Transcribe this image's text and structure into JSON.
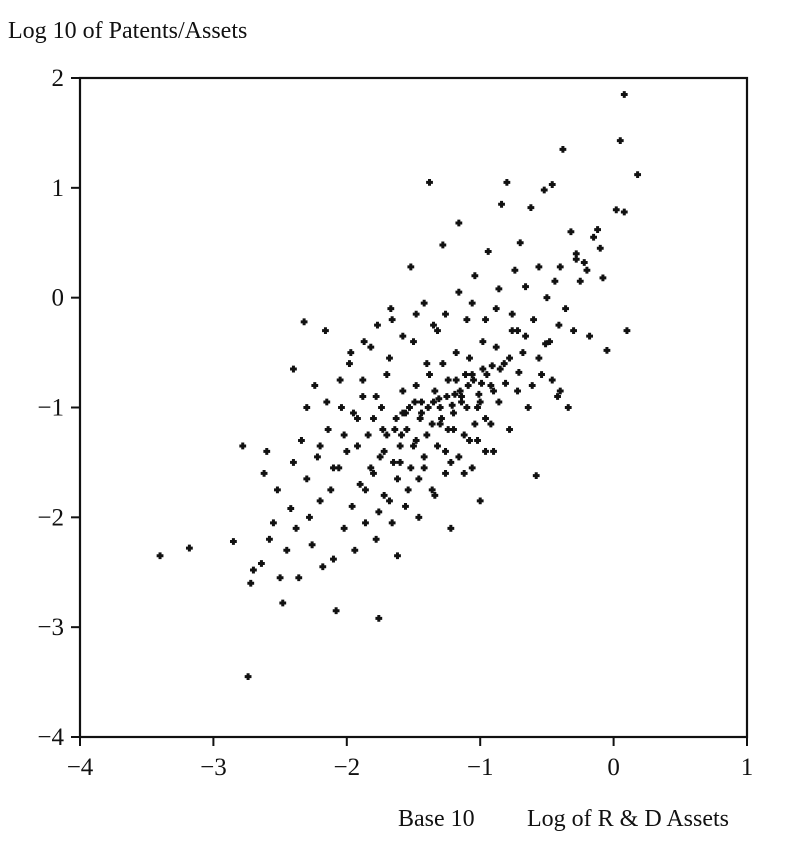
{
  "chart_data": {
    "type": "scatter",
    "title": "",
    "ylabel": "Log 10 of Patents/Assets",
    "xlabel_parts": [
      "Base 10",
      "Log of R & D Assets"
    ],
    "xlim": [
      -4,
      1
    ],
    "ylim": [
      -4,
      2
    ],
    "x_ticks": [
      -4,
      -3,
      -2,
      -1,
      0,
      1
    ],
    "x_tick_labels": [
      "−4",
      "−3",
      "−2",
      "−1",
      "0",
      "1"
    ],
    "y_ticks": [
      -4,
      -3,
      -2,
      -1,
      0,
      1,
      2
    ],
    "y_tick_labels": [
      "−4",
      "−3",
      "−2",
      "−1",
      "0",
      "1",
      "2"
    ],
    "grid": false,
    "legend": "none",
    "marker": "plus",
    "color": "#111111",
    "points": [
      [
        -3.4,
        -2.35
      ],
      [
        -3.18,
        -2.28
      ],
      [
        -2.74,
        -3.45
      ],
      [
        -2.85,
        -2.22
      ],
      [
        -2.78,
        -1.35
      ],
      [
        -2.72,
        -2.6
      ],
      [
        -2.7,
        -2.48
      ],
      [
        -2.64,
        -2.42
      ],
      [
        -2.62,
        -1.6
      ],
      [
        -2.6,
        -1.4
      ],
      [
        -2.58,
        -2.2
      ],
      [
        -2.55,
        -2.05
      ],
      [
        -2.52,
        -1.75
      ],
      [
        -2.5,
        -2.55
      ],
      [
        -2.48,
        -2.78
      ],
      [
        -2.45,
        -2.3
      ],
      [
        -2.42,
        -1.92
      ],
      [
        -2.4,
        -1.5
      ],
      [
        -2.38,
        -2.1
      ],
      [
        -2.36,
        -2.55
      ],
      [
        -2.34,
        -1.3
      ],
      [
        -2.32,
        -0.22
      ],
      [
        -2.3,
        -1.65
      ],
      [
        -2.28,
        -2.0
      ],
      [
        -2.26,
        -2.25
      ],
      [
        -2.24,
        -0.8
      ],
      [
        -2.22,
        -1.45
      ],
      [
        -2.2,
        -1.85
      ],
      [
        -2.18,
        -2.45
      ],
      [
        -2.16,
        -0.3
      ],
      [
        -2.14,
        -1.2
      ],
      [
        -2.12,
        -1.75
      ],
      [
        -2.1,
        -2.38
      ],
      [
        -2.08,
        -2.85
      ],
      [
        -2.06,
        -1.55
      ],
      [
        -2.04,
        -1.0
      ],
      [
        -2.02,
        -2.1
      ],
      [
        -2.0,
        -1.4
      ],
      [
        -1.98,
        -0.6
      ],
      [
        -1.96,
        -1.9
      ],
      [
        -1.94,
        -2.3
      ],
      [
        -1.92,
        -1.1
      ],
      [
        -1.9,
        -1.7
      ],
      [
        -1.88,
        -0.9
      ],
      [
        -1.86,
        -2.05
      ],
      [
        -1.84,
        -1.25
      ],
      [
        -1.82,
        -0.45
      ],
      [
        -1.8,
        -1.6
      ],
      [
        -1.78,
        -2.2
      ],
      [
        -1.76,
        -2.92
      ],
      [
        -1.74,
        -1.0
      ],
      [
        -1.72,
        -1.4
      ],
      [
        -1.7,
        -0.7
      ],
      [
        -1.68,
        -1.85
      ],
      [
        -1.66,
        -0.2
      ],
      [
        -1.64,
        -1.2
      ],
      [
        -1.62,
        -2.35
      ],
      [
        -1.6,
        -1.5
      ],
      [
        -1.58,
        -0.85
      ],
      [
        -1.56,
        -1.05
      ],
      [
        -1.54,
        -1.75
      ],
      [
        -1.52,
        0.28
      ],
      [
        -1.5,
        -0.4
      ],
      [
        -1.48,
        -1.3
      ],
      [
        -1.46,
        -2.0
      ],
      [
        -1.44,
        -0.95
      ],
      [
        -1.42,
        -1.55
      ],
      [
        -1.4,
        -0.6
      ],
      [
        -1.38,
        1.05
      ],
      [
        -1.36,
        -1.15
      ],
      [
        -1.34,
        -1.8
      ],
      [
        -1.32,
        -0.3
      ],
      [
        -1.3,
        -1.0
      ],
      [
        -1.28,
        0.48
      ],
      [
        -1.26,
        -1.4
      ],
      [
        -1.24,
        -0.75
      ],
      [
        -1.22,
        -2.1
      ],
      [
        -1.2,
        -1.2
      ],
      [
        -1.18,
        -0.5
      ],
      [
        -1.16,
        0.68
      ],
      [
        -1.14,
        -0.9
      ],
      [
        -1.12,
        -1.6
      ],
      [
        -1.1,
        -0.2
      ],
      [
        -1.08,
        -1.3
      ],
      [
        -1.06,
        -0.7
      ],
      [
        -1.04,
        0.2
      ],
      [
        -1.02,
        -1.0
      ],
      [
        -1.0,
        -1.85
      ],
      [
        -0.98,
        -0.4
      ],
      [
        -0.96,
        -1.1
      ],
      [
        -0.94,
        0.42
      ],
      [
        -0.92,
        -0.8
      ],
      [
        -0.9,
        -1.4
      ],
      [
        -0.88,
        -0.1
      ],
      [
        -0.86,
        -0.95
      ],
      [
        -0.84,
        0.85
      ],
      [
        -0.82,
        -0.6
      ],
      [
        -0.8,
        1.05
      ],
      [
        -0.78,
        -1.2
      ],
      [
        -0.76,
        -0.3
      ],
      [
        -0.74,
        0.25
      ],
      [
        -0.72,
        -0.85
      ],
      [
        -0.7,
        0.5
      ],
      [
        -0.68,
        -0.5
      ],
      [
        -0.66,
        0.1
      ],
      [
        -0.64,
        -1.0
      ],
      [
        -0.62,
        0.82
      ],
      [
        -0.6,
        -0.2
      ],
      [
        -0.58,
        -1.62
      ],
      [
        -0.56,
        0.28
      ],
      [
        -0.54,
        -0.7
      ],
      [
        -0.52,
        0.98
      ],
      [
        -0.5,
        0.0
      ],
      [
        -0.48,
        -0.4
      ],
      [
        -0.46,
        1.03
      ],
      [
        -0.44,
        0.15
      ],
      [
        -0.42,
        -0.9
      ],
      [
        -0.4,
        0.28
      ],
      [
        -0.38,
        1.35
      ],
      [
        -0.36,
        -0.1
      ],
      [
        -0.34,
        -1.0
      ],
      [
        -0.32,
        0.6
      ],
      [
        -0.3,
        -0.3
      ],
      [
        -0.28,
        0.4
      ],
      [
        -0.25,
        0.15
      ],
      [
        -0.22,
        0.32
      ],
      [
        -0.18,
        -0.35
      ],
      [
        -0.15,
        0.55
      ],
      [
        -0.12,
        0.62
      ],
      [
        -0.08,
        0.18
      ],
      [
        -0.05,
        -0.48
      ],
      [
        0.02,
        0.8
      ],
      [
        0.05,
        1.43
      ],
      [
        0.08,
        0.78
      ],
      [
        0.1,
        -0.3
      ],
      [
        0.08,
        1.85
      ],
      [
        0.18,
        1.12
      ],
      [
        -0.2,
        0.25
      ],
      [
        -0.28,
        0.35
      ],
      [
        -0.1,
        0.45
      ],
      [
        -1.55,
        -1.2
      ],
      [
        -1.5,
        -1.35
      ],
      [
        -1.45,
        -1.1
      ],
      [
        -1.4,
        -1.25
      ],
      [
        -1.35,
        -0.95
      ],
      [
        -1.3,
        -1.15
      ],
      [
        -1.25,
        -0.9
      ],
      [
        -1.2,
        -1.05
      ],
      [
        -1.15,
        -0.85
      ],
      [
        -1.1,
        -1.0
      ],
      [
        -1.05,
        -0.75
      ],
      [
        -1.0,
        -0.95
      ],
      [
        -0.95,
        -0.7
      ],
      [
        -0.9,
        -0.85
      ],
      [
        -0.85,
        -0.65
      ],
      [
        -1.6,
        -1.35
      ],
      [
        -1.65,
        -1.5
      ],
      [
        -1.7,
        -1.25
      ],
      [
        -1.75,
        -1.45
      ],
      [
        -1.8,
        -1.1
      ],
      [
        -1.58,
        -1.05
      ],
      [
        -1.48,
        -0.8
      ],
      [
        -1.38,
        -0.7
      ],
      [
        -1.28,
        -0.6
      ],
      [
        -1.18,
        -0.75
      ],
      [
        -1.08,
        -0.55
      ],
      [
        -0.98,
        -0.65
      ],
      [
        -0.88,
        -0.45
      ],
      [
        -0.78,
        -0.55
      ],
      [
        -0.72,
        -0.3
      ],
      [
        -1.62,
        -1.65
      ],
      [
        -1.52,
        -1.55
      ],
      [
        -1.42,
        -1.45
      ],
      [
        -1.32,
        -1.35
      ],
      [
        -1.22,
        -1.5
      ],
      [
        -1.12,
        -1.25
      ],
      [
        -1.02,
        -1.3
      ],
      [
        -0.92,
        -1.15
      ],
      [
        -1.72,
        -1.8
      ],
      [
        -1.82,
        -1.55
      ],
      [
        -1.92,
        -1.35
      ],
      [
        -2.02,
        -1.25
      ],
      [
        -1.95,
        -1.05
      ],
      [
        -1.88,
        -0.75
      ],
      [
        -1.78,
        -0.9
      ],
      [
        -1.68,
        -0.55
      ],
      [
        -1.58,
        -0.35
      ],
      [
        -1.48,
        -0.15
      ],
      [
        -1.42,
        -0.05
      ],
      [
        -1.35,
        -0.25
      ],
      [
        -1.26,
        -0.15
      ],
      [
        -1.16,
        0.05
      ],
      [
        -1.06,
        -0.05
      ],
      [
        -0.96,
        -0.2
      ],
      [
        -0.86,
        0.08
      ],
      [
        -0.76,
        -0.15
      ],
      [
        -0.66,
        -0.35
      ],
      [
        -0.56,
        -0.55
      ],
      [
        -0.46,
        -0.75
      ],
      [
        -0.4,
        -0.85
      ],
      [
        -1.46,
        -1.65
      ],
      [
        -1.36,
        -1.75
      ],
      [
        -1.26,
        -1.6
      ],
      [
        -1.16,
        -1.45
      ],
      [
        -1.06,
        -1.55
      ],
      [
        -0.96,
        -1.4
      ],
      [
        -1.56,
        -1.9
      ],
      [
        -1.66,
        -2.05
      ],
      [
        -1.76,
        -1.95
      ],
      [
        -1.86,
        -1.75
      ],
      [
        -2.1,
        -1.55
      ],
      [
        -2.2,
        -1.35
      ],
      [
        -2.3,
        -1.0
      ],
      [
        -2.4,
        -0.65
      ],
      [
        -2.15,
        -0.95
      ],
      [
        -2.05,
        -0.75
      ],
      [
        -1.97,
        -0.5
      ],
      [
        -1.87,
        -0.4
      ],
      [
        -1.77,
        -0.25
      ],
      [
        -1.67,
        -0.1
      ],
      [
        -1.44,
        -1.05
      ],
      [
        -1.34,
        -0.85
      ],
      [
        -1.24,
        -1.2
      ],
      [
        -1.14,
        -0.95
      ],
      [
        -1.04,
        -1.15
      ],
      [
        -1.39,
        -1.0
      ],
      [
        -1.29,
        -1.1
      ],
      [
        -1.19,
        -0.88
      ],
      [
        -1.09,
        -0.8
      ],
      [
        -0.99,
        -0.78
      ],
      [
        -1.53,
        -1.0
      ],
      [
        -1.63,
        -1.1
      ],
      [
        -1.73,
        -1.2
      ],
      [
        -1.49,
        -0.95
      ],
      [
        -1.59,
        -1.25
      ],
      [
        -1.31,
        -0.92
      ],
      [
        -1.21,
        -0.98
      ],
      [
        -1.11,
        -0.7
      ],
      [
        -1.01,
        -0.88
      ],
      [
        -0.91,
        -0.62
      ],
      [
        -0.81,
        -0.78
      ],
      [
        -0.71,
        -0.68
      ],
      [
        -0.61,
        -0.8
      ],
      [
        -0.51,
        -0.42
      ],
      [
        -0.41,
        -0.25
      ]
    ]
  }
}
